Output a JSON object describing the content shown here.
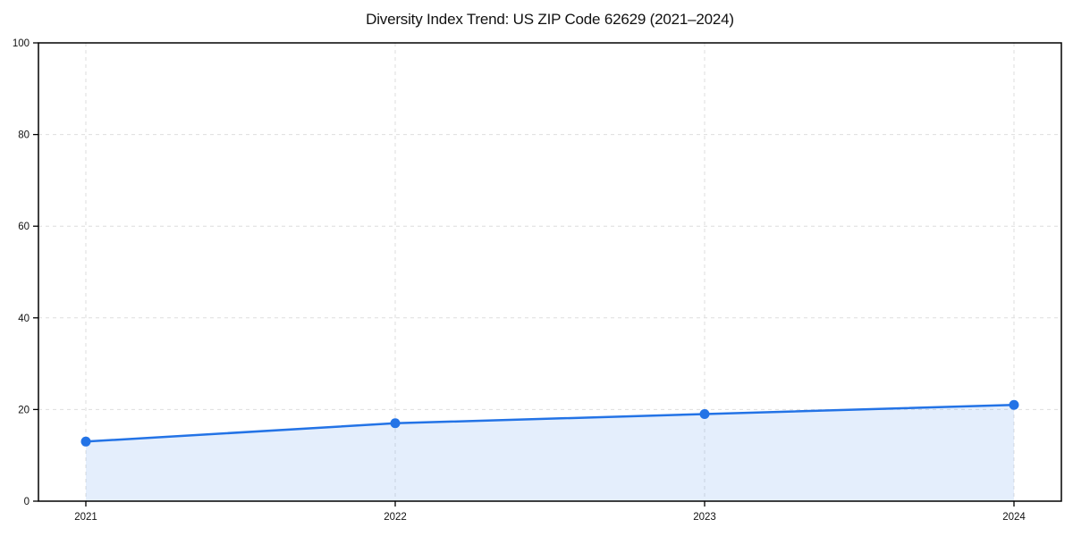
{
  "page": {
    "background_color": "#ffffff"
  },
  "chart_data": {
    "type": "line",
    "title": "Diversity Index Trend: US ZIP Code 62629 (2021–2024)",
    "categories": [
      "2021",
      "2022",
      "2023",
      "2024"
    ],
    "values": [
      13,
      17,
      19,
      21
    ],
    "xlabel": "",
    "ylabel": "",
    "ylim": [
      0,
      100
    ],
    "yticks": [
      0,
      20,
      40,
      60,
      80,
      100
    ],
    "grid": true,
    "grid_style": "dashed",
    "legend_position": "none",
    "area_fill_under_line": true,
    "markers": "circle",
    "colors": {
      "line": "#2373e6",
      "marker": "#2373e6",
      "area_fill_rgba": "rgba(35,115,230,0.12)",
      "grid": "#dedede",
      "axis_spine": "#000000",
      "tick_text": "#111111",
      "title_text": "#111111"
    }
  }
}
